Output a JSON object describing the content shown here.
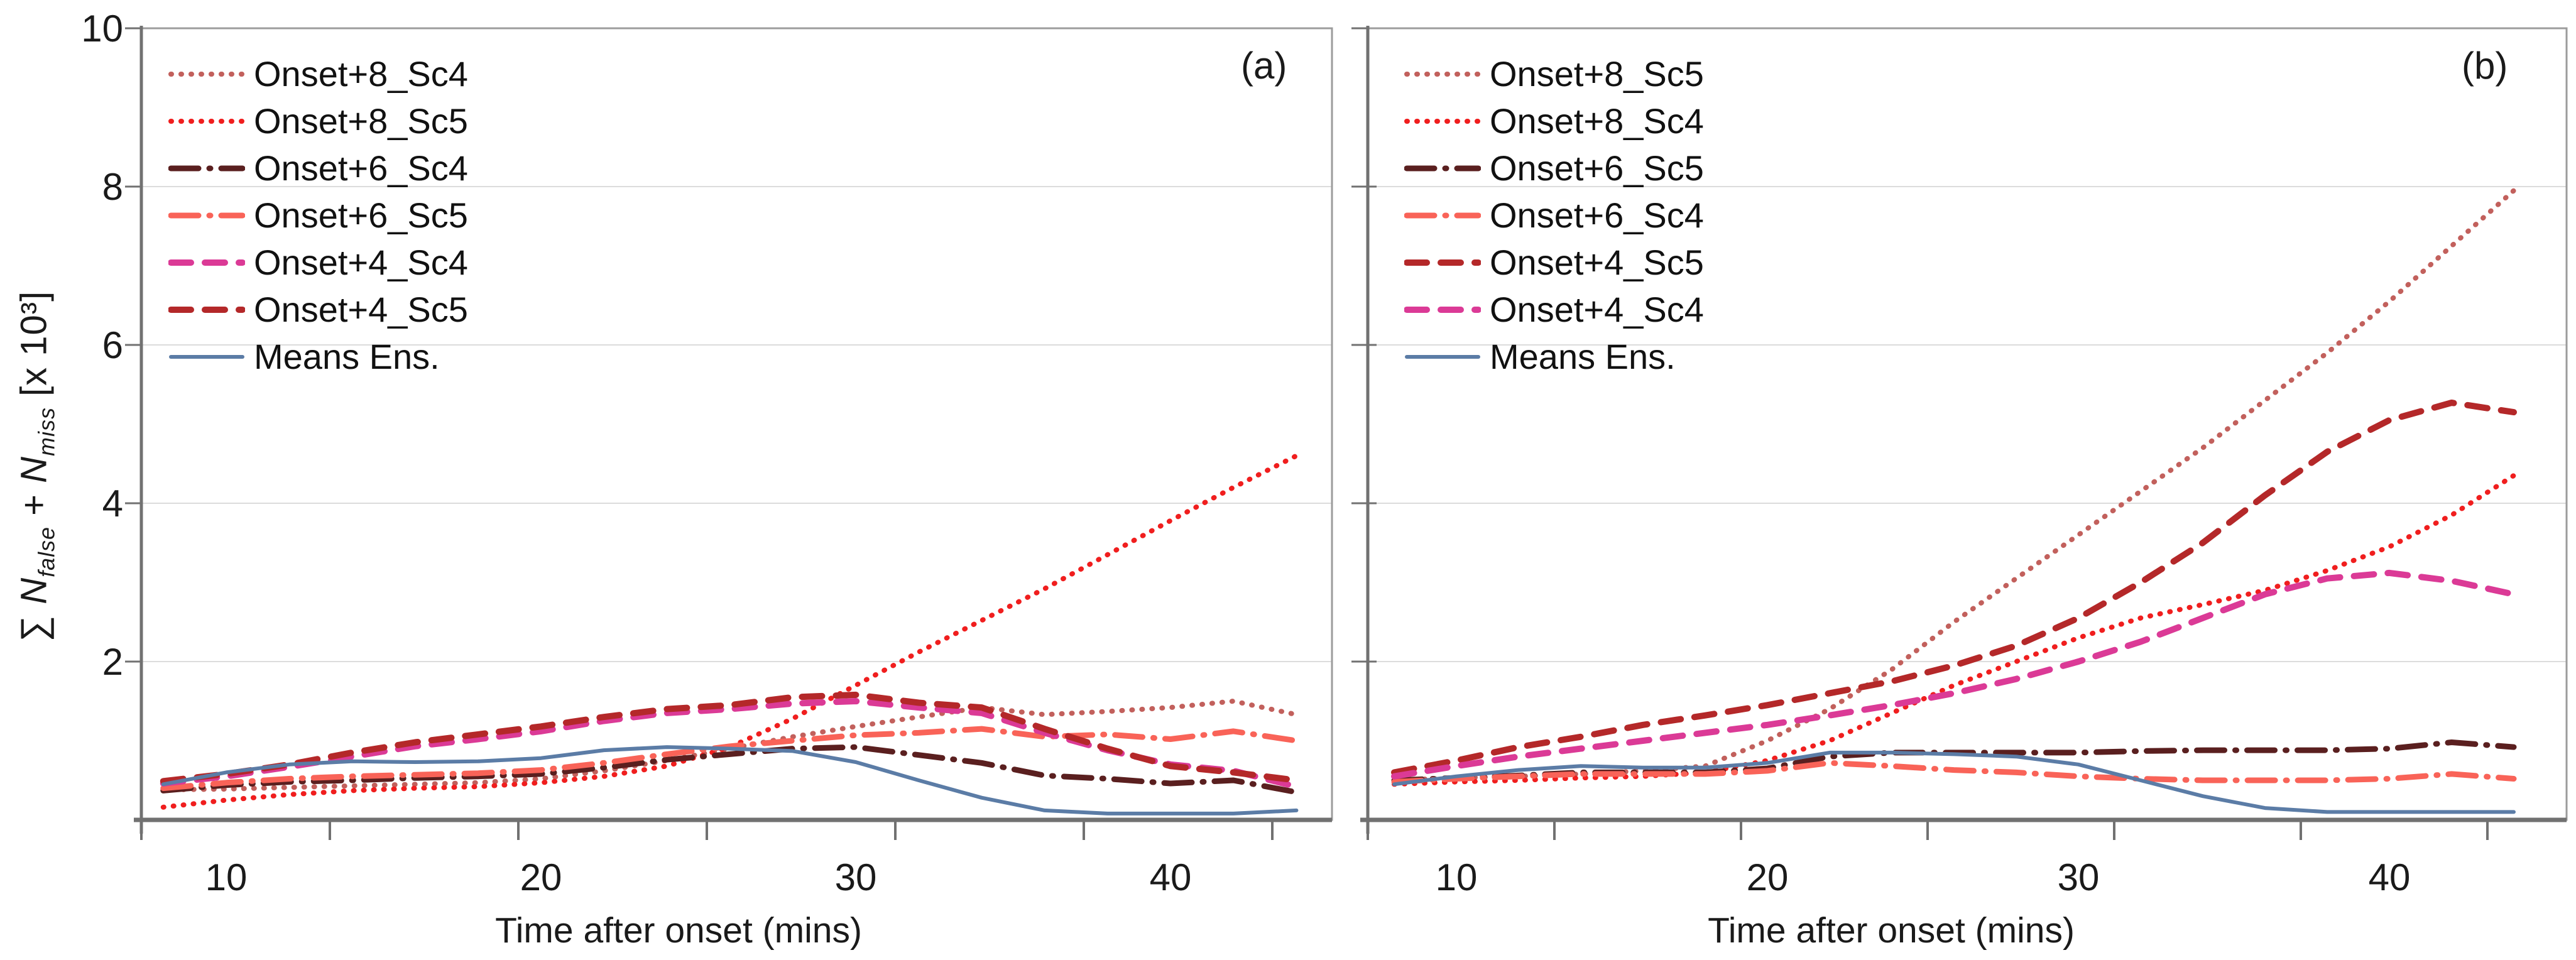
{
  "figure": {
    "background": "#ffffff",
    "grid_color": "#dcdcdc",
    "border_color": "#9c9c9c",
    "axis_color": "#717171",
    "text_color": "#1a1a1a",
    "ylabel_text": "∑ N_false + N_miss [x 10³]",
    "ylabel_parts": {
      "sigma": "∑ ",
      "n1": "N",
      "sub1": "false",
      "plus": " + ",
      "n2": "N",
      "sub2": "miss",
      "bracket": " [x 10³]"
    }
  },
  "chart_data": [
    {
      "type": "line",
      "panel_label": "(a)",
      "xlabel": "Time after onset (mins)",
      "ylabel": "∑ N_false + N_miss [x 10³]",
      "xlim": [
        7.3,
        45.2
      ],
      "ylim": [
        0,
        10
      ],
      "xticks": [
        10,
        20,
        30,
        40
      ],
      "yticks": [
        2,
        4,
        6,
        8,
        10
      ],
      "grid": "horizontal",
      "legend_position": "top-left-inside",
      "x": [
        8,
        10,
        12,
        14,
        16,
        18,
        20,
        22,
        24,
        26,
        28,
        30,
        32,
        34,
        36,
        38,
        40,
        42,
        44
      ],
      "series": [
        {
          "name": "Onset+8_Sc4",
          "style": "dotted",
          "color": "#c2605c",
          "values": [
            0.38,
            0.39,
            0.41,
            0.43,
            0.45,
            0.47,
            0.52,
            0.62,
            0.75,
            0.9,
            1.05,
            1.18,
            1.3,
            1.42,
            1.33,
            1.37,
            1.42,
            1.5,
            1.33
          ]
        },
        {
          "name": "Onset+8_Sc5",
          "style": "dotted",
          "color": "#f01e1e",
          "values": [
            0.16,
            0.25,
            0.32,
            0.37,
            0.4,
            0.42,
            0.47,
            0.55,
            0.68,
            0.92,
            1.28,
            1.7,
            2.12,
            2.52,
            2.92,
            3.35,
            3.78,
            4.2,
            4.6
          ]
        },
        {
          "name": "Onset+6_Sc4",
          "style": "dashdot",
          "color": "#5a1f1f",
          "values": [
            0.37,
            0.44,
            0.48,
            0.5,
            0.53,
            0.55,
            0.58,
            0.66,
            0.76,
            0.83,
            0.9,
            0.92,
            0.82,
            0.72,
            0.56,
            0.52,
            0.46,
            0.5,
            0.35
          ]
        },
        {
          "name": "Onset+6_Sc5",
          "style": "dashdot",
          "color": "#f96358",
          "values": [
            0.4,
            0.47,
            0.52,
            0.55,
            0.57,
            0.59,
            0.63,
            0.72,
            0.83,
            0.93,
            1.0,
            1.07,
            1.1,
            1.15,
            1.05,
            1.08,
            1.02,
            1.12,
            1.0
          ]
        },
        {
          "name": "Onset+4_Sc4",
          "style": "dashed",
          "color": "#db3a96",
          "values": [
            0.46,
            0.55,
            0.67,
            0.8,
            0.93,
            1.02,
            1.12,
            1.25,
            1.35,
            1.4,
            1.47,
            1.5,
            1.42,
            1.35,
            1.1,
            0.88,
            0.7,
            0.62,
            0.42
          ]
        },
        {
          "name": "Onset+4_Sc5",
          "style": "dashed",
          "color": "#b42829",
          "values": [
            0.49,
            0.58,
            0.7,
            0.85,
            0.98,
            1.08,
            1.18,
            1.3,
            1.4,
            1.45,
            1.55,
            1.58,
            1.48,
            1.42,
            1.15,
            0.9,
            0.68,
            0.6,
            0.5
          ]
        },
        {
          "name": "Means Ens.",
          "style": "solid",
          "color": "#5b7ca6",
          "values": [
            0.45,
            0.6,
            0.7,
            0.74,
            0.73,
            0.74,
            0.78,
            0.88,
            0.92,
            0.9,
            0.87,
            0.73,
            0.5,
            0.28,
            0.12,
            0.08,
            0.08,
            0.08,
            0.12
          ]
        }
      ]
    },
    {
      "type": "line",
      "panel_label": "(b)",
      "xlabel": "Time after onset (mins)",
      "ylabel": "∑ N_false + N_miss [x 10³]",
      "xlim": [
        7.2,
        45.2
      ],
      "ylim": [
        0,
        10
      ],
      "xticks": [
        10,
        20,
        30,
        40
      ],
      "yticks": [
        2,
        4,
        6,
        8,
        10
      ],
      "grid": "horizontal",
      "legend_position": "top-left-inside",
      "x": [
        8,
        10,
        12,
        14,
        16,
        18,
        20,
        22,
        24,
        26,
        28,
        30,
        32,
        34,
        36,
        38,
        40,
        42,
        44
      ],
      "series": [
        {
          "name": "Onset+8_Sc5",
          "style": "dotted",
          "color": "#c2605c",
          "values": [
            0.5,
            0.53,
            0.55,
            0.58,
            0.62,
            0.68,
            1.0,
            1.4,
            1.9,
            2.5,
            3.05,
            3.6,
            4.15,
            4.7,
            5.3,
            5.9,
            6.55,
            7.25,
            7.95
          ]
        },
        {
          "name": "Onset+8_Sc4",
          "style": "dotted",
          "color": "#f01e1e",
          "values": [
            0.45,
            0.48,
            0.5,
            0.53,
            0.55,
            0.6,
            0.75,
            1.0,
            1.35,
            1.7,
            2.0,
            2.3,
            2.55,
            2.72,
            2.9,
            3.15,
            3.45,
            3.85,
            4.35
          ]
        },
        {
          "name": "Onset+6_Sc5",
          "style": "dashdot",
          "color": "#5a1f1f",
          "values": [
            0.5,
            0.53,
            0.56,
            0.6,
            0.6,
            0.6,
            0.65,
            0.8,
            0.85,
            0.85,
            0.85,
            0.85,
            0.87,
            0.88,
            0.88,
            0.88,
            0.9,
            0.98,
            0.92
          ]
        },
        {
          "name": "Onset+6_Sc4",
          "style": "dashdot",
          "color": "#f96358",
          "values": [
            0.48,
            0.52,
            0.55,
            0.58,
            0.58,
            0.58,
            0.62,
            0.72,
            0.68,
            0.63,
            0.6,
            0.55,
            0.52,
            0.5,
            0.5,
            0.5,
            0.52,
            0.58,
            0.52
          ]
        },
        {
          "name": "Onset+4_Sc5",
          "style": "dashed",
          "color": "#b42829",
          "values": [
            0.6,
            0.75,
            0.92,
            1.05,
            1.2,
            1.32,
            1.45,
            1.6,
            1.75,
            1.95,
            2.2,
            2.55,
            3.0,
            3.5,
            4.1,
            4.65,
            5.05,
            5.27,
            5.15
          ]
        },
        {
          "name": "Onset+4_Sc4",
          "style": "dashed",
          "color": "#db3a96",
          "values": [
            0.55,
            0.68,
            0.8,
            0.9,
            1.0,
            1.1,
            1.2,
            1.32,
            1.45,
            1.6,
            1.78,
            2.0,
            2.25,
            2.55,
            2.85,
            3.05,
            3.12,
            3.02,
            2.85
          ]
        },
        {
          "name": "Means Ens.",
          "style": "solid",
          "color": "#5b7ca6",
          "values": [
            0.45,
            0.55,
            0.63,
            0.68,
            0.66,
            0.66,
            0.72,
            0.85,
            0.85,
            0.83,
            0.8,
            0.7,
            0.5,
            0.3,
            0.15,
            0.1,
            0.1,
            0.1,
            0.1
          ]
        }
      ]
    }
  ]
}
